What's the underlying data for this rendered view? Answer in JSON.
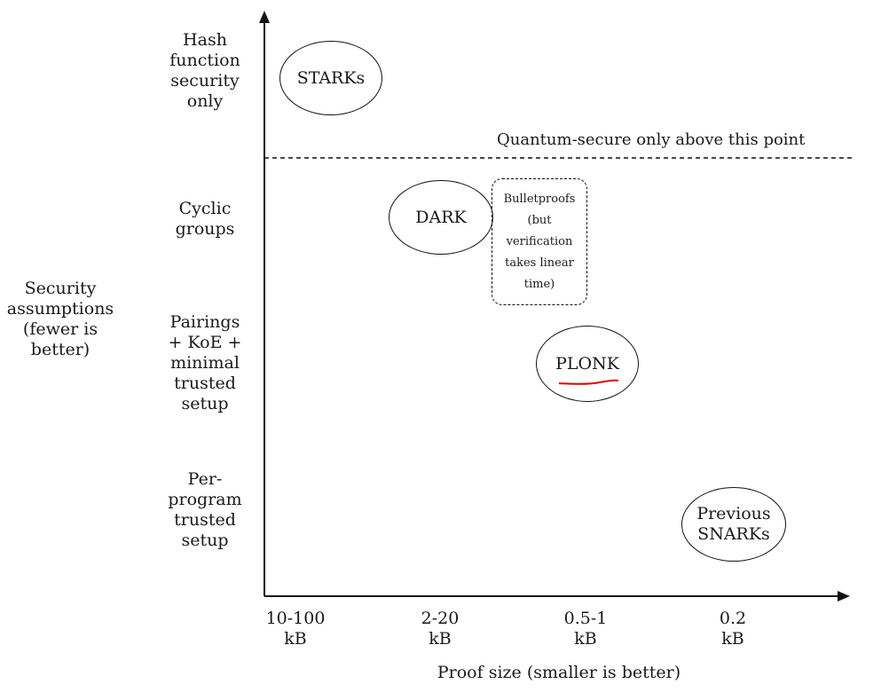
{
  "y_axis": {
    "title": "Security\nassumptions\n(fewer is\nbetter)",
    "levels": [
      "Hash\nfunction\nsecurity\nonly",
      "Cyclic\ngroups",
      "Pairings\n+ KoE +\nminimal\ntrusted\nsetup",
      "Per-\nprogram\ntrusted\nsetup"
    ]
  },
  "x_axis": {
    "title": "Proof size (smaller is better)",
    "ticks": [
      "10-100\nkB",
      "2-20\nkB",
      "0.5-1\nkB",
      "0.2\nkB"
    ]
  },
  "threshold_note": "Quantum-secure only above this point",
  "schemes": {
    "starks": "STARKs",
    "dark": "DARK",
    "bulletproofs": "Bulletproofs\n(but\nverification\ntakes linear\ntime)",
    "plonk": "PLONK",
    "previous_snarks": "Previous\nSNARKs"
  },
  "colors": {
    "underline": "#e00000",
    "ink": "#111111"
  }
}
